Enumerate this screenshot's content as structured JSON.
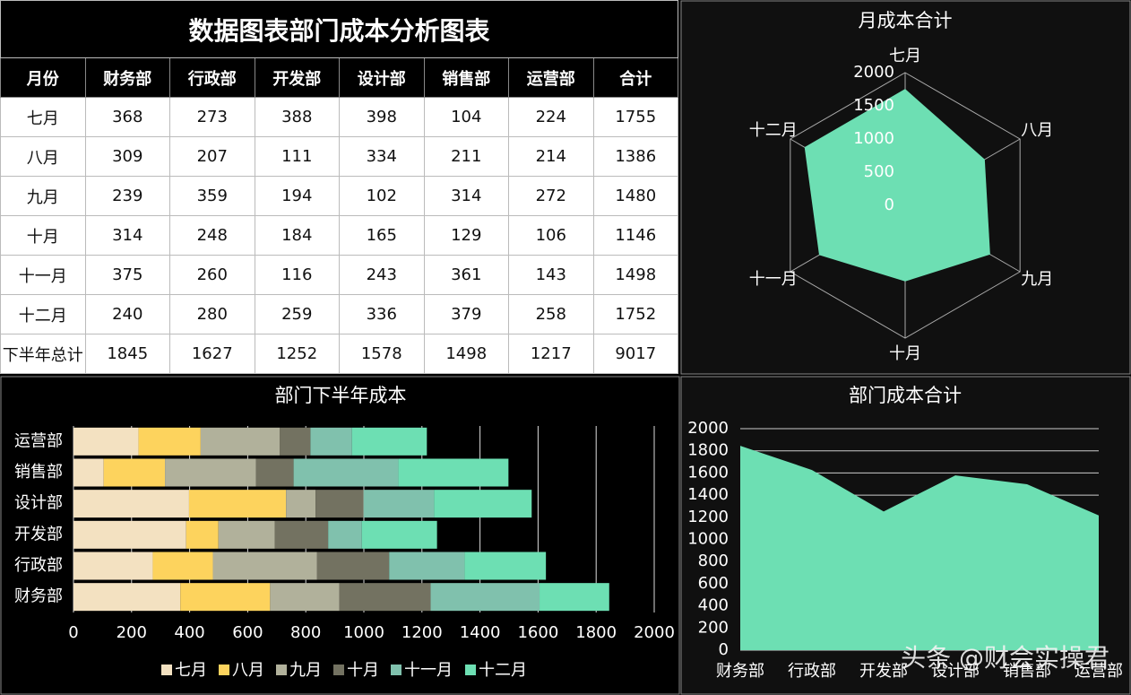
{
  "table": {
    "title": "数据图表部门成本分析图表",
    "columns": [
      "月份",
      "财务部",
      "行政部",
      "开发部",
      "设计部",
      "销售部",
      "运营部",
      "合计"
    ],
    "rows": [
      [
        "七月",
        368,
        273,
        388,
        398,
        104,
        224,
        1755
      ],
      [
        "八月",
        309,
        207,
        111,
        334,
        211,
        214,
        1386
      ],
      [
        "九月",
        239,
        359,
        194,
        102,
        314,
        272,
        1480
      ],
      [
        "十月",
        314,
        248,
        184,
        165,
        129,
        106,
        1146
      ],
      [
        "十一月",
        375,
        260,
        116,
        243,
        361,
        143,
        1498
      ],
      [
        "十二月",
        240,
        280,
        259,
        336,
        379,
        258,
        1752
      ],
      [
        "下半年总计",
        1845,
        1627,
        1252,
        1578,
        1498,
        1217,
        9017
      ]
    ]
  },
  "chart_data": [
    {
      "type": "radar",
      "title": "月成本合计",
      "categories": [
        "七月",
        "八月",
        "九月",
        "十月",
        "十一月",
        "十二月"
      ],
      "values": [
        1755,
        1386,
        1480,
        1146,
        1498,
        1752
      ],
      "color": "#6ddfb3",
      "rlim": [
        0,
        2000
      ],
      "rticks": [
        0,
        500,
        1000,
        1500,
        2000
      ]
    },
    {
      "type": "stacked_barh",
      "title": "部门下半年成本",
      "categories": [
        "财务部",
        "行政部",
        "开发部",
        "设计部",
        "销售部",
        "运营部"
      ],
      "series": [
        {
          "name": "七月",
          "color": "#f3e1c1",
          "values": [
            368,
            273,
            388,
            398,
            104,
            224
          ]
        },
        {
          "name": "八月",
          "color": "#fdd35d",
          "values": [
            309,
            207,
            111,
            334,
            211,
            214
          ]
        },
        {
          "name": "九月",
          "color": "#b1b19b",
          "values": [
            239,
            359,
            194,
            102,
            314,
            272
          ]
        },
        {
          "name": "十月",
          "color": "#737261",
          "values": [
            314,
            248,
            184,
            165,
            129,
            106
          ]
        },
        {
          "name": "十一月",
          "color": "#80c1ad",
          "values": [
            375,
            260,
            116,
            243,
            361,
            143
          ]
        },
        {
          "name": "十二月",
          "color": "#6ddfb3",
          "values": [
            240,
            280,
            259,
            336,
            379,
            258
          ]
        }
      ],
      "xlim": [
        0,
        2000
      ],
      "xticks": [
        0,
        200,
        400,
        600,
        800,
        1000,
        1200,
        1400,
        1600,
        1800,
        2000
      ],
      "grid": true,
      "legend": "bottom"
    },
    {
      "type": "area",
      "title": "部门成本合计",
      "categories": [
        "财务部",
        "行政部",
        "开发部",
        "设计部",
        "销售部",
        "运营部"
      ],
      "values": [
        1845,
        1627,
        1252,
        1578,
        1498,
        1217
      ],
      "color": "#6ddfb3",
      "ylim": [
        0,
        2000
      ],
      "yticks": [
        0,
        200,
        400,
        600,
        800,
        1000,
        1200,
        1400,
        1600,
        1800,
        2000
      ],
      "grid": true
    }
  ],
  "watermark": "头条 @财会实操君"
}
